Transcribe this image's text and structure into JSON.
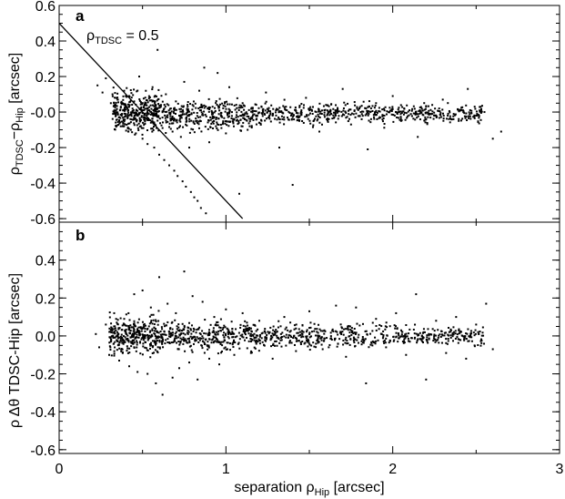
{
  "figure": {
    "xlabel": {
      "main": "separation ρ",
      "sub": "Hip",
      "unit": " [arcsec]"
    },
    "x_ticks": [
      "0",
      "1",
      "2",
      "3"
    ]
  },
  "chart_data": [
    {
      "type": "scatter",
      "panel_label": "a",
      "ylabel": {
        "p1": "ρ",
        "s1": "TDSC",
        "p2": "−ρ",
        "s2": "Hip",
        "p3": " [arcsec]"
      },
      "xlim": [
        0,
        3
      ],
      "ylim": [
        -0.62,
        0.6
      ],
      "y_ticks": [
        "0.6",
        "0.4",
        "0.2",
        "-0.0",
        "-0.2",
        "-0.4",
        "-0.6"
      ],
      "y_tick_values": [
        0.6,
        0.4,
        0.2,
        0.0,
        -0.2,
        -0.4,
        -0.6
      ],
      "annotation": {
        "main": "ρ",
        "sub": "TDSC",
        "rest": " = 0.5"
      },
      "reference_line": {
        "x": [
          0.0,
          1.1
        ],
        "y": [
          0.5,
          -0.6
        ]
      },
      "points": [
        [
          0.23,
          0.15
        ],
        [
          0.26,
          0.11
        ],
        [
          0.28,
          0.19
        ],
        [
          0.31,
          0.05
        ],
        [
          0.32,
          0.1
        ],
        [
          0.33,
          0.0
        ],
        [
          0.34,
          -0.02
        ],
        [
          0.35,
          0.07
        ],
        [
          0.36,
          -0.05
        ],
        [
          0.37,
          0.03
        ],
        [
          0.38,
          -0.08
        ],
        [
          0.39,
          0.12
        ],
        [
          0.4,
          0.04
        ],
        [
          0.41,
          -0.03
        ],
        [
          0.42,
          0.09
        ],
        [
          0.43,
          -0.1
        ],
        [
          0.44,
          0.0
        ],
        [
          0.45,
          0.06
        ],
        [
          0.46,
          -0.12
        ],
        [
          0.47,
          -0.02
        ],
        [
          0.48,
          0.2
        ],
        [
          0.49,
          0.02
        ],
        [
          0.5,
          -0.15
        ],
        [
          0.51,
          -0.04
        ],
        [
          0.52,
          0.05
        ],
        [
          0.53,
          -0.18
        ],
        [
          0.54,
          0.01
        ],
        [
          0.55,
          -0.06
        ],
        [
          0.56,
          0.14
        ],
        [
          0.57,
          -0.2
        ],
        [
          0.58,
          -0.01
        ],
        [
          0.59,
          0.35
        ],
        [
          0.6,
          -0.24
        ],
        [
          0.61,
          0.03
        ],
        [
          0.62,
          -0.09
        ],
        [
          0.63,
          -0.27
        ],
        [
          0.64,
          0.1
        ],
        [
          0.65,
          -0.03
        ],
        [
          0.66,
          -0.3
        ],
        [
          0.67,
          0.02
        ],
        [
          0.68,
          -0.11
        ],
        [
          0.69,
          -0.33
        ],
        [
          0.7,
          0.06
        ],
        [
          0.71,
          -0.36
        ],
        [
          0.72,
          -0.02
        ],
        [
          0.73,
          -0.14
        ],
        [
          0.74,
          -0.39
        ],
        [
          0.75,
          0.17
        ],
        [
          0.76,
          -0.42
        ],
        [
          0.77,
          0.0
        ],
        [
          0.78,
          -0.2
        ],
        [
          0.79,
          -0.45
        ],
        [
          0.8,
          0.04
        ],
        [
          0.81,
          -0.48
        ],
        [
          0.82,
          -0.05
        ],
        [
          0.83,
          -0.5
        ],
        [
          0.84,
          0.12
        ],
        [
          0.85,
          -0.54
        ],
        [
          0.86,
          -0.01
        ],
        [
          0.87,
          0.25
        ],
        [
          0.88,
          -0.57
        ],
        [
          0.89,
          0.02
        ],
        [
          0.9,
          -0.17
        ],
        [
          0.92,
          0.03
        ],
        [
          0.94,
          -0.08
        ],
        [
          0.95,
          0.22
        ],
        [
          0.97,
          -0.02
        ],
        [
          1.0,
          -0.12
        ],
        [
          1.02,
          0.14
        ],
        [
          1.05,
          -0.04
        ],
        [
          1.08,
          -0.46
        ],
        [
          1.1,
          0.05
        ],
        [
          1.13,
          -0.1
        ],
        [
          1.16,
          0.02
        ],
        [
          1.2,
          -0.06
        ],
        [
          1.24,
          0.11
        ],
        [
          1.28,
          -0.02
        ],
        [
          1.32,
          -0.2
        ],
        [
          1.36,
          0.03
        ],
        [
          1.4,
          -0.41
        ],
        [
          1.44,
          -0.05
        ],
        [
          1.48,
          0.08
        ],
        [
          1.52,
          -0.01
        ],
        [
          1.56,
          -0.11
        ],
        [
          1.6,
          0.04
        ],
        [
          1.65,
          -0.03
        ],
        [
          1.7,
          0.13
        ],
        [
          1.75,
          -0.07
        ],
        [
          1.8,
          0.02
        ],
        [
          1.85,
          -0.21
        ],
        [
          1.9,
          0.05
        ],
        [
          1.95,
          -0.02
        ],
        [
          2.0,
          0.09
        ],
        [
          2.05,
          -0.05
        ],
        [
          2.1,
          0.01
        ],
        [
          2.15,
          -0.14
        ],
        [
          2.2,
          0.03
        ],
        [
          2.25,
          -0.02
        ],
        [
          2.3,
          0.07
        ],
        [
          2.35,
          -0.04
        ],
        [
          2.4,
          0.01
        ],
        [
          2.45,
          0.13
        ],
        [
          2.5,
          -0.02
        ],
        [
          2.55,
          0.0
        ],
        [
          2.6,
          -0.15
        ],
        [
          2.65,
          -0.11
        ]
      ],
      "dense_band": [
        {
          "x0": 0.32,
          "x1": 0.6,
          "y_center": 0.0,
          "y_spread": 0.08,
          "n": 340
        },
        {
          "x0": 0.6,
          "x1": 1.2,
          "y_center": -0.02,
          "y_spread": 0.06,
          "n": 360
        },
        {
          "x0": 1.2,
          "x1": 2.0,
          "y_center": -0.01,
          "y_spread": 0.045,
          "n": 320
        },
        {
          "x0": 2.0,
          "x1": 2.55,
          "y_center": -0.01,
          "y_spread": 0.035,
          "n": 200
        }
      ]
    },
    {
      "type": "scatter",
      "panel_label": "b",
      "ylabel": {
        "p1": "ρ Δθ  TDSC-Hip  [arcsec]"
      },
      "xlim": [
        0,
        3
      ],
      "ylim": [
        -0.62,
        0.6
      ],
      "y_ticks": [
        "0.4",
        "0.2",
        "0.0",
        "-0.2",
        "-0.4",
        "-0.6"
      ],
      "y_tick_values": [
        0.4,
        0.2,
        0.0,
        -0.2,
        -0.4,
        -0.6
      ],
      "points": [
        [
          0.22,
          0.01
        ],
        [
          0.24,
          -0.06
        ],
        [
          0.28,
          0.06
        ],
        [
          0.3,
          -0.1
        ],
        [
          0.33,
          0.12
        ],
        [
          0.36,
          -0.13
        ],
        [
          0.39,
          0.09
        ],
        [
          0.42,
          -0.16
        ],
        [
          0.45,
          0.22
        ],
        [
          0.47,
          -0.19
        ],
        [
          0.5,
          0.24
        ],
        [
          0.53,
          -0.2
        ],
        [
          0.55,
          0.15
        ],
        [
          0.58,
          -0.25
        ],
        [
          0.6,
          0.31
        ],
        [
          0.62,
          -0.31
        ],
        [
          0.65,
          0.17
        ],
        [
          0.68,
          -0.22
        ],
        [
          0.7,
          0.12
        ],
        [
          0.72,
          -0.17
        ],
        [
          0.75,
          0.34
        ],
        [
          0.78,
          -0.14
        ],
        [
          0.8,
          0.21
        ],
        [
          0.83,
          -0.23
        ],
        [
          0.86,
          0.18
        ],
        [
          0.9,
          -0.12
        ],
        [
          0.93,
          0.1
        ],
        [
          0.96,
          -0.15
        ],
        [
          1.0,
          0.14
        ],
        [
          1.05,
          -0.1
        ],
        [
          1.1,
          0.12
        ],
        [
          1.15,
          -0.09
        ],
        [
          1.2,
          0.08
        ],
        [
          1.28,
          -0.12
        ],
        [
          1.35,
          0.1
        ],
        [
          1.42,
          -0.08
        ],
        [
          1.5,
          0.13
        ],
        [
          1.58,
          -0.07
        ],
        [
          1.66,
          0.16
        ],
        [
          1.72,
          -0.11
        ],
        [
          1.78,
          0.15
        ],
        [
          1.84,
          -0.25
        ],
        [
          1.9,
          0.09
        ],
        [
          1.96,
          -0.06
        ],
        [
          2.02,
          0.12
        ],
        [
          2.08,
          -0.1
        ],
        [
          2.14,
          0.22
        ],
        [
          2.2,
          -0.23
        ],
        [
          2.26,
          0.08
        ],
        [
          2.32,
          -0.09
        ],
        [
          2.38,
          0.1
        ],
        [
          2.44,
          -0.12
        ],
        [
          2.5,
          0.06
        ],
        [
          2.56,
          0.17
        ],
        [
          2.6,
          -0.07
        ]
      ],
      "dense_band": [
        {
          "x0": 0.3,
          "x1": 0.6,
          "y_center": 0.0,
          "y_spread": 0.07,
          "n": 340
        },
        {
          "x0": 0.6,
          "x1": 1.2,
          "y_center": 0.0,
          "y_spread": 0.055,
          "n": 360
        },
        {
          "x0": 1.2,
          "x1": 2.0,
          "y_center": 0.0,
          "y_spread": 0.045,
          "n": 320
        },
        {
          "x0": 2.0,
          "x1": 2.55,
          "y_center": 0.0,
          "y_spread": 0.035,
          "n": 200
        }
      ]
    }
  ]
}
